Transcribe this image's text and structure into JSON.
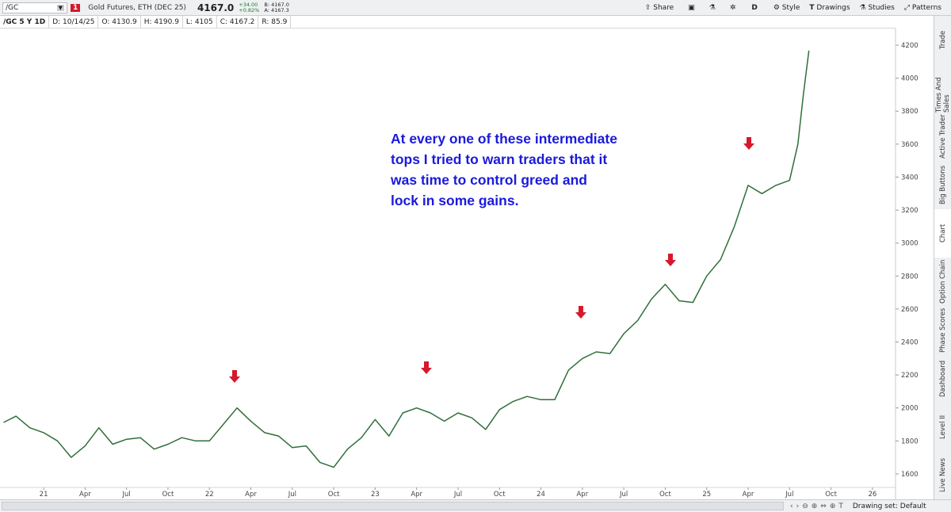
{
  "toolbar": {
    "symbol": "/GC",
    "alert_count": "1",
    "description": "Gold Futures, ETH (DEC 25)",
    "last": "4167.0",
    "change": "+34.00",
    "change_pct": "+0.82%",
    "bid": "B: 4167.0",
    "ask": "A: 4167.3",
    "buttons": [
      "Share",
      "D",
      "Style",
      "Drawings",
      "Studies",
      "Patterns"
    ]
  },
  "info_bar": [
    "/GC 5 Y 1D",
    "D: 10/14/25",
    "O: 4130.9",
    "H: 4190.9",
    "L: 4105",
    "C: 4167.2",
    "R: 85.9"
  ],
  "side_tabs": [
    "Trade",
    "Times And Sales",
    "Active Trader",
    "Big Buttons",
    "Chart",
    "Option Chain",
    "Phase Scores",
    "Dashboard",
    "Level II",
    "Live News"
  ],
  "footer": "Drawing set: Default",
  "chart_data": {
    "type": "line",
    "annotation": [
      "At every one of these intermediate",
      "tops I tried to warn traders that it",
      "was time to control greed and",
      "lock in some gains."
    ],
    "x": [
      -2.9,
      -2,
      -1,
      0,
      1,
      2,
      3,
      4,
      5,
      6,
      7,
      8,
      9,
      10,
      11,
      12,
      13,
      14,
      15,
      16,
      17,
      18,
      19,
      20,
      21,
      22,
      23,
      24,
      25,
      26,
      27,
      28,
      29,
      30,
      31,
      32,
      33,
      34,
      35,
      36,
      37,
      38,
      39,
      40,
      41,
      42,
      43,
      44,
      45,
      46,
      47,
      48,
      49,
      50,
      51,
      52,
      53,
      54,
      54.6,
      55,
      55.4
    ],
    "values": [
      1912,
      1950,
      1880,
      1850,
      1800,
      1700,
      1770,
      1880,
      1780,
      1810,
      1820,
      1750,
      1780,
      1820,
      1800,
      1800,
      1900,
      2000,
      1920,
      1850,
      1830,
      1760,
      1770,
      1670,
      1640,
      1750,
      1820,
      1930,
      1830,
      1970,
      2000,
      1970,
      1920,
      1970,
      1940,
      1870,
      1990,
      2040,
      2070,
      2050,
      2050,
      2230,
      2300,
      2340,
      2330,
      2450,
      2530,
      2660,
      2750,
      2650,
      2640,
      2800,
      2900,
      3100,
      3350,
      3300,
      3350,
      3380,
      3600,
      3900,
      4167
    ],
    "color": "#2f6e3a",
    "xlim": [
      -3.16,
      61.67
    ],
    "xticks": [
      {
        "value": 0,
        "label": "21"
      },
      {
        "value": 3,
        "label": "Apr"
      },
      {
        "value": 6,
        "label": "Jul"
      },
      {
        "value": 9,
        "label": "Oct"
      },
      {
        "value": 12,
        "label": "22"
      },
      {
        "value": 15,
        "label": "Apr"
      },
      {
        "value": 18,
        "label": "Jul"
      },
      {
        "value": 21,
        "label": "Oct"
      },
      {
        "value": 24,
        "label": "23"
      },
      {
        "value": 27,
        "label": "Apr"
      },
      {
        "value": 30,
        "label": "Jul"
      },
      {
        "value": 33,
        "label": "Oct"
      },
      {
        "value": 36,
        "label": "24"
      },
      {
        "value": 39,
        "label": "Apr"
      },
      {
        "value": 42,
        "label": "Jul"
      },
      {
        "value": 45,
        "label": "Oct"
      },
      {
        "value": 48,
        "label": "25"
      },
      {
        "value": 51,
        "label": "Apr"
      },
      {
        "value": 54,
        "label": "Jul"
      },
      {
        "value": 57,
        "label": "Oct"
      },
      {
        "value": 60,
        "label": "26"
      }
    ],
    "ylim": [
      1518,
      4301
    ],
    "yticks": [
      1600,
      1800,
      2000,
      2200,
      2400,
      2600,
      2800,
      3000,
      3200,
      3400,
      3600,
      3800,
      4000,
      4200
    ],
    "grid": false
  }
}
